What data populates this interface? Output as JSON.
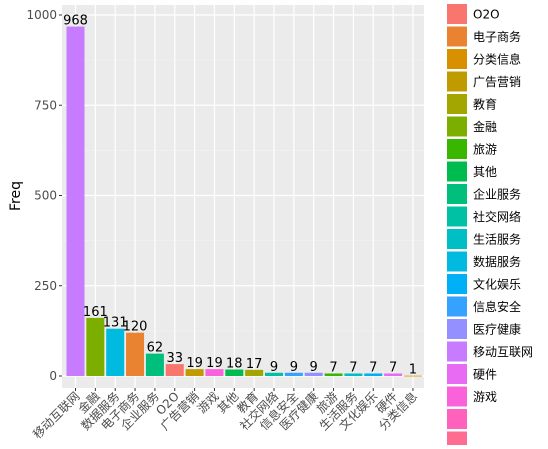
{
  "chart_data": {
    "type": "bar",
    "ylabel": "Freq",
    "xlabel": "",
    "ylim": [
      0,
      1000
    ],
    "yticks": [
      0,
      250,
      500,
      750,
      1000
    ],
    "grid": true,
    "legend_position": "right",
    "categories": [
      "移动互联网",
      "金融",
      "数据服务",
      "电子商务",
      "企业服务",
      "O2O",
      "广告营销",
      "游戏",
      "其他",
      "教育",
      "社交网络",
      "信息安全",
      "医疗健康",
      "旅游",
      "生活服务",
      "文化娱乐",
      "硬件",
      "分类信息"
    ],
    "values": [
      968,
      161,
      131,
      120,
      62,
      33,
      19,
      19,
      18,
      17,
      9,
      9,
      9,
      7,
      7,
      7,
      7,
      1
    ],
    "value_labels": [
      "968",
      "161",
      "131",
      "120",
      "62",
      "33",
      "19",
      "19",
      "18",
      "17",
      "9",
      "9",
      "9",
      "7",
      "7",
      "7",
      "7",
      "1"
    ],
    "legend": [
      {
        "label": "O2O",
        "color": "#F8766D"
      },
      {
        "label": "电子商务",
        "color": "#EA8331"
      },
      {
        "label": "分类信息",
        "color": "#D89000"
      },
      {
        "label": "广告营销",
        "color": "#C09B00"
      },
      {
        "label": "教育",
        "color": "#A3A500"
      },
      {
        "label": "金融",
        "color": "#7CAE00"
      },
      {
        "label": "旅游",
        "color": "#39B600"
      },
      {
        "label": "其他",
        "color": "#00BB4E"
      },
      {
        "label": "企业服务",
        "color": "#00BF7D"
      },
      {
        "label": "社交网络",
        "color": "#00C1A3"
      },
      {
        "label": "生活服务",
        "color": "#00BFC4"
      },
      {
        "label": "数据服务",
        "color": "#00BAE0"
      },
      {
        "label": "文化娱乐",
        "color": "#00B0F6"
      },
      {
        "label": "信息安全",
        "color": "#35A2FF"
      },
      {
        "label": "医疗健康",
        "color": "#9590FF"
      },
      {
        "label": "移动互联网",
        "color": "#C77CFF"
      },
      {
        "label": "硬件",
        "color": "#E76BF3"
      },
      {
        "label": "游戏",
        "color": "#FA62DB"
      }
    ],
    "legend_extra_colors": [
      "#FF62BC",
      "#FF6C91"
    ]
  }
}
